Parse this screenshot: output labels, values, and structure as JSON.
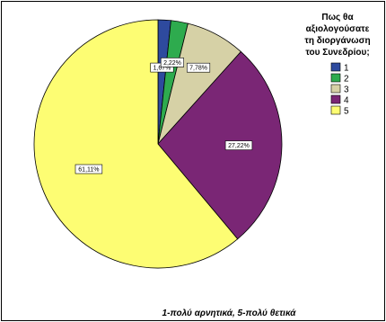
{
  "chart_data": {
    "type": "pie",
    "categories": [
      "1",
      "2",
      "3",
      "4",
      "5"
    ],
    "values": [
      1.67,
      2.22,
      7.78,
      27.22,
      61.11
    ],
    "value_labels": [
      "1,67%",
      "2,22%",
      "7,78%",
      "27,22%",
      "61,11%"
    ],
    "colors": [
      "#2e4a9e",
      "#2eab4e",
      "#d6d1a6",
      "#7a2675",
      "#fdfd73"
    ],
    "legend_title_lines": [
      "Πως θα",
      "αξιολογούσατε",
      "τη διοργάνωση",
      "του Συνεδρίου;"
    ],
    "legend_position": "top-right",
    "caption": "1-πολύ αρνητικά, 5-πολύ θετικά",
    "start_angle_deg": 0,
    "direction": "clockwise"
  }
}
